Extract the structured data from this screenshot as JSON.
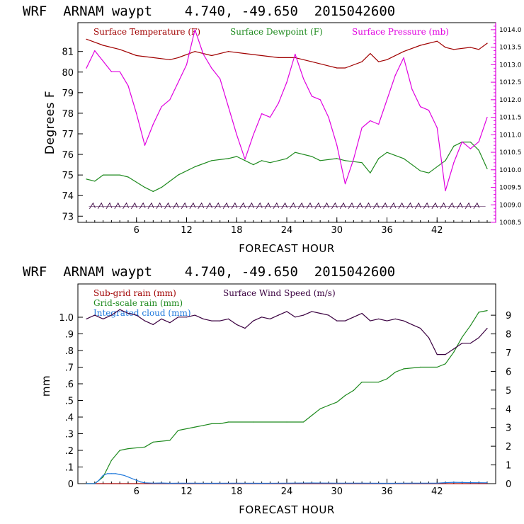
{
  "colors": {
    "temperature": "#a00000",
    "dewpoint": "#1e8a1e",
    "pressure": "#e000e0",
    "subgrid_rain": "#a00000",
    "grid_rain": "#1e8a1e",
    "cloud": "#1e78dc",
    "wind": "#3a0040",
    "barbs": "#3a0040"
  },
  "chart_data": [
    {
      "type": "line",
      "title": "WRF  ARNAM waypt    4.740, -49.650  2015042600",
      "xlabel": "FORECAST HOUR",
      "ylabel": "Degrees F",
      "xlim": [
        0,
        48
      ],
      "ylim": [
        72.7,
        82.4
      ],
      "y2lim": [
        1008.5,
        1014.2
      ],
      "x_ticks": [
        6,
        12,
        18,
        24,
        30,
        36,
        42
      ],
      "y_ticks": [
        73,
        74,
        75,
        76,
        77,
        78,
        79,
        80,
        81
      ],
      "y2_ticks": [
        "1008.5",
        "1009.0",
        "1009.5",
        "1010.0",
        "1010.5",
        "1011.0",
        "1011.5",
        "1012.0",
        "1012.5",
        "1013.0",
        "1013.5",
        "1014.0"
      ],
      "legend": [
        {
          "label": "Surface Temperature (F)",
          "color_key": "temperature"
        },
        {
          "label": "Surface Dewpoint (F)",
          "color_key": "dewpoint"
        },
        {
          "label": "Surface Pressure (mb)",
          "color_key": "pressure"
        }
      ],
      "series": [
        {
          "name": "Surface Temperature (F)",
          "axis": "left",
          "color_key": "temperature",
          "x": [
            0,
            2,
            4,
            6,
            8,
            10,
            11,
            13,
            15,
            17,
            19,
            21,
            23,
            25,
            27,
            29,
            30,
            31,
            33,
            34,
            35,
            36,
            38,
            40,
            42,
            43,
            44,
            46,
            47,
            48
          ],
          "values": [
            81.6,
            81.3,
            81.1,
            80.8,
            80.7,
            80.6,
            80.7,
            81.0,
            80.8,
            81.0,
            80.9,
            80.8,
            80.7,
            80.7,
            80.5,
            80.3,
            80.2,
            80.2,
            80.5,
            80.9,
            80.5,
            80.6,
            81.0,
            81.3,
            81.5,
            81.2,
            81.1,
            81.2,
            81.1,
            81.4
          ]
        },
        {
          "name": "Surface Dewpoint (F)",
          "axis": "left",
          "color_key": "dewpoint",
          "x": [
            0,
            1,
            2,
            4,
            5,
            7,
            8,
            9,
            10,
            11,
            13,
            15,
            17,
            18,
            20,
            21,
            22,
            24,
            25,
            27,
            28,
            30,
            31,
            33,
            34,
            35,
            36,
            38,
            40,
            41,
            43,
            44,
            45,
            46,
            47,
            48
          ],
          "values": [
            74.8,
            74.7,
            75.0,
            75.0,
            74.9,
            74.4,
            74.2,
            74.4,
            74.7,
            75.0,
            75.4,
            75.7,
            75.8,
            75.9,
            75.5,
            75.7,
            75.6,
            75.8,
            76.1,
            75.9,
            75.7,
            75.8,
            75.7,
            75.6,
            75.1,
            75.8,
            76.1,
            75.8,
            75.2,
            75.1,
            75.7,
            76.4,
            76.6,
            76.6,
            76.2,
            75.3
          ]
        },
        {
          "name": "Surface Pressure (mb)",
          "axis": "right",
          "color_key": "pressure",
          "x": [
            0,
            1,
            2,
            3,
            4,
            5,
            6,
            7,
            8,
            9,
            10,
            11,
            12,
            13,
            14,
            15,
            16,
            17,
            18,
            19,
            20,
            21,
            22,
            23,
            24,
            25,
            26,
            27,
            28,
            29,
            30,
            31,
            32,
            33,
            34,
            35,
            36,
            37,
            38,
            39,
            40,
            41,
            42,
            43,
            44,
            45,
            46,
            47,
            48
          ],
          "values": [
            1012.9,
            1013.4,
            1013.1,
            1012.8,
            1012.8,
            1012.4,
            1011.6,
            1010.7,
            1011.3,
            1011.8,
            1012.0,
            1012.5,
            1013.0,
            1014.0,
            1013.3,
            1012.9,
            1012.6,
            1011.8,
            1011.0,
            1010.3,
            1011.0,
            1011.6,
            1011.5,
            1011.9,
            1012.5,
            1013.3,
            1012.6,
            1012.1,
            1012.0,
            1011.5,
            1010.7,
            1009.6,
            1010.3,
            1011.2,
            1011.4,
            1011.3,
            1012.0,
            1012.7,
            1013.2,
            1012.3,
            1011.8,
            1011.7,
            1011.2,
            1009.4,
            1010.2,
            1010.8,
            1010.6,
            1010.8,
            1011.5
          ]
        }
      ],
      "wind_barbs_level_F": 73.5
    },
    {
      "type": "line",
      "title": "WRF  ARNAM waypt    4.740, -49.650  2015042600",
      "xlabel": "FORECAST HOUR",
      "ylabel": "mm",
      "xlim": [
        0,
        48
      ],
      "ylim": [
        0,
        1.2
      ],
      "y2lim": [
        0,
        10.67
      ],
      "x_ticks": [
        6,
        12,
        18,
        24,
        30,
        36,
        42
      ],
      "y_ticks": [
        "0",
        ".1",
        ".2",
        ".3",
        ".4",
        ".5",
        ".6",
        ".7",
        ".8",
        ".9",
        "1.0"
      ],
      "y2_ticks": [
        "0",
        "1",
        "2",
        "3",
        "4",
        "5",
        "6",
        "7",
        "8",
        "9"
      ],
      "legend": [
        {
          "label": "Sub-grid rain (mm)",
          "color_key": "subgrid_rain"
        },
        {
          "label": "Surface Wind Speed (m/s)",
          "color_key": "wind"
        },
        {
          "label": "Grid-scale rain (mm)",
          "color_key": "grid_rain"
        },
        {
          "label": "Integrated cloud (mm)",
          "color_key": "cloud"
        }
      ],
      "series": [
        {
          "name": "Sub-grid rain (mm)",
          "axis": "left",
          "color_key": "subgrid_rain",
          "x": [
            0,
            48
          ],
          "values": [
            0,
            0
          ]
        },
        {
          "name": "Grid-scale rain (mm)",
          "axis": "left",
          "color_key": "grid_rain",
          "x": [
            0,
            1,
            2,
            3,
            4,
            5,
            7,
            8,
            10,
            11,
            13,
            14,
            15,
            16,
            17,
            20,
            24,
            26,
            27,
            28,
            29,
            30,
            31,
            32,
            33,
            35,
            36,
            37,
            38,
            40,
            42,
            43,
            44,
            45,
            46,
            47,
            48
          ],
          "values": [
            0,
            0,
            0.04,
            0.14,
            0.2,
            0.21,
            0.22,
            0.25,
            0.26,
            0.32,
            0.34,
            0.35,
            0.36,
            0.36,
            0.37,
            0.37,
            0.37,
            0.37,
            0.41,
            0.45,
            0.47,
            0.49,
            0.53,
            0.56,
            0.61,
            0.61,
            0.63,
            0.67,
            0.69,
            0.7,
            0.7,
            0.72,
            0.79,
            0.88,
            0.95,
            1.03,
            1.04
          ]
        },
        {
          "name": "Integrated cloud (mm)",
          "axis": "left",
          "color_key": "cloud",
          "x": [
            0,
            1,
            1.5,
            2,
            2.5,
            3,
            3.5,
            4,
            4.5,
            5,
            5.5,
            6,
            6.5,
            7,
            8,
            9,
            10,
            12,
            15,
            18,
            21,
            24,
            27,
            30,
            33,
            36,
            39,
            42,
            43,
            44,
            46,
            48
          ],
          "values": [
            0,
            0,
            0.02,
            0.05,
            0.06,
            0.06,
            0.06,
            0.055,
            0.05,
            0.04,
            0.03,
            0.02,
            0.01,
            0.005,
            0.003,
            0.004,
            0.002,
            0.003,
            0.002,
            0.003,
            0.002,
            0.003,
            0.004,
            0.003,
            0.003,
            0.002,
            0.003,
            0.003,
            0.006,
            0.008,
            0.006,
            0.005
          ]
        },
        {
          "name": "Surface Wind Speed (m/s)",
          "axis": "right",
          "color_key": "wind",
          "x": [
            0,
            1,
            2,
            3,
            4,
            5,
            6,
            7,
            8,
            9,
            10,
            11,
            12,
            13,
            14,
            15,
            16,
            17,
            18,
            19,
            20,
            21,
            22,
            23,
            24,
            25,
            26,
            27,
            28,
            29,
            30,
            31,
            32,
            33,
            34,
            35,
            36,
            37,
            38,
            39,
            40,
            41,
            42,
            43,
            44,
            45,
            46,
            47,
            48
          ],
          "values": [
            8.8,
            9.0,
            8.8,
            9.0,
            9.3,
            9.1,
            9.0,
            8.7,
            8.5,
            8.8,
            8.6,
            8.9,
            8.9,
            9.0,
            8.8,
            8.7,
            8.7,
            8.8,
            8.5,
            8.3,
            8.7,
            8.9,
            8.8,
            9.0,
            9.2,
            8.9,
            9.0,
            9.2,
            9.1,
            9.0,
            8.7,
            8.7,
            8.9,
            9.1,
            8.7,
            8.8,
            8.7,
            8.8,
            8.7,
            8.5,
            8.3,
            7.8,
            6.9,
            6.9,
            7.2,
            7.5,
            7.5,
            7.8,
            8.3
          ]
        }
      ]
    }
  ]
}
